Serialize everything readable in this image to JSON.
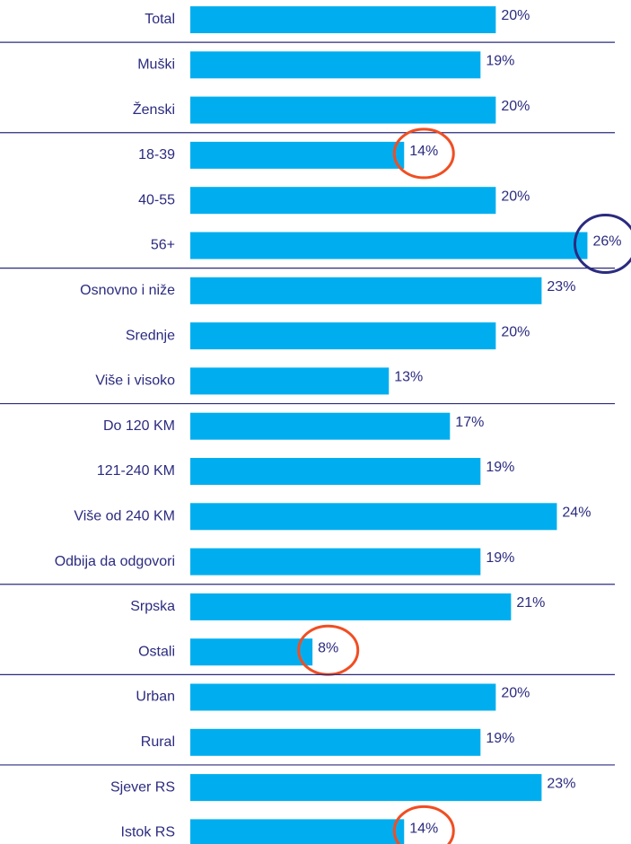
{
  "chart_data": {
    "type": "hbar",
    "categories": [
      "Total",
      "Muški",
      "Ženski",
      "18-39",
      "40-55",
      "56+",
      "Osnovno i niže",
      "Srednje",
      "Više i visoko",
      "Do 120 KM",
      "121-240 KM",
      "Više od 240 KM",
      "Odbija da odgovori",
      "Srpska",
      "Ostali",
      "Urban",
      "Rural",
      "Sjever RS",
      "Istok RS"
    ],
    "values": [
      20,
      19,
      20,
      14,
      20,
      26,
      23,
      20,
      13,
      17,
      19,
      24,
      19,
      21,
      8,
      20,
      19,
      23,
      14
    ],
    "value_labels": [
      "20%",
      "19%",
      "20%",
      "14%",
      "20%",
      "26%",
      "23%",
      "20%",
      "13%",
      "17%",
      "19%",
      "24%",
      "19%",
      "21%",
      "8%",
      "20%",
      "19%",
      "23%",
      "14%"
    ],
    "color": "#00aeef",
    "xlim": [
      0,
      28.5
    ]
  }
}
